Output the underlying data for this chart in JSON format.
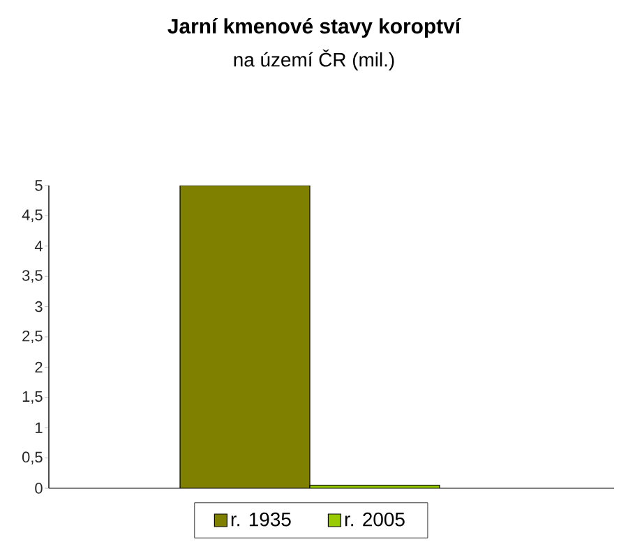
{
  "chart_data": {
    "type": "bar",
    "title": "Jarní kmenové stavy koroptví",
    "subtitle": "na území ČR (mil.)",
    "categories": [
      null
    ],
    "series": [
      {
        "name": "r. 1935",
        "color": "#808000",
        "values": [
          5
        ]
      },
      {
        "name": "r. 2005",
        "color": "#99cc00",
        "values": [
          0.05
        ]
      }
    ],
    "ylim": [
      0,
      5
    ],
    "yticks": [
      0,
      {
        "value": 0.5,
        "label": "0,5"
      },
      1,
      {
        "value": 1.5,
        "label": "1,5"
      },
      2,
      {
        "value": 2.5,
        "label": "2,5"
      },
      3,
      {
        "value": 3.5,
        "label": "3,5"
      },
      4,
      {
        "value": 4.5,
        "label": "4,5"
      },
      5
    ],
    "legend": "bottom"
  }
}
